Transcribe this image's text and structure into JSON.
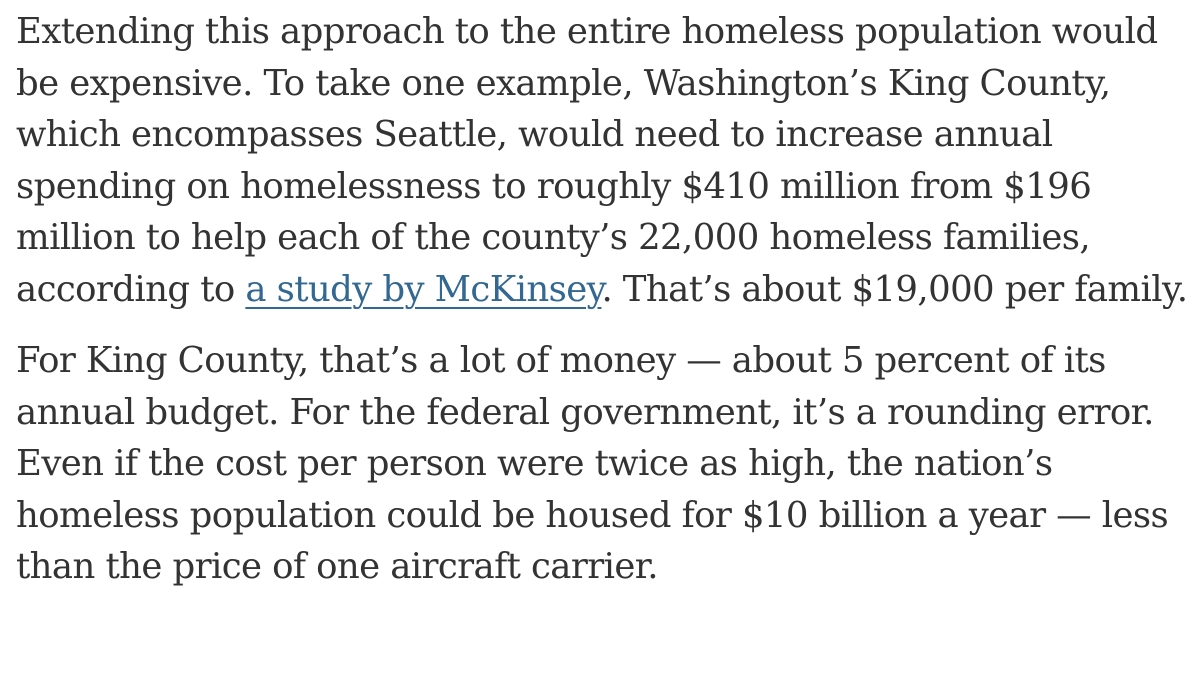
{
  "article": {
    "paragraphs": [
      {
        "lines": [
          "Extending this approach to the entire homeless population would",
          "be expensive. To take one example, Washington’s King County,",
          "which encompasses Seattle, would need to increase annual",
          "spending on homelessness to roughly $410 million from $196",
          "million to help each of the county’s 22,000 homeless families,"
        ],
        "last_line": {
          "before_link": "according to ",
          "link_text": "a study by McKinsey",
          "after_link": ". That’s about $19,000 per family."
        }
      },
      {
        "lines": [
          "For King County, that’s a lot of money — about 5 percent of its",
          "annual budget. For the federal government, it’s a rounding error.",
          "Even if the cost per person were twice as high, the nation’s",
          "homeless population could be housed for $10 billion a year — less",
          "than the price of one aircraft carrier."
        ]
      }
    ],
    "link_color": "#326891",
    "text_color": "#333333"
  }
}
